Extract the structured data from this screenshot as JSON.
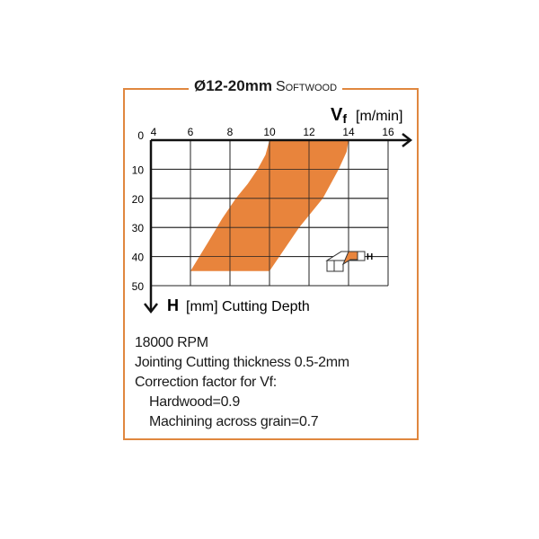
{
  "title": {
    "main": "Ø12-20mm",
    "sub": "Softwood"
  },
  "chart_data": {
    "type": "area",
    "x_axis": {
      "symbol": "V",
      "subscript": "f",
      "unit": "[m/min]",
      "range": [
        4,
        16
      ],
      "ticks": [
        "4",
        "6",
        "8",
        "10",
        "12",
        "14",
        "16"
      ]
    },
    "y_axis": {
      "symbol": "H",
      "label": "[mm] Cutting Depth",
      "range": [
        0,
        50
      ],
      "ticks": [
        "0",
        "10",
        "20",
        "30",
        "40",
        "50"
      ],
      "inverted": true
    },
    "grid": true,
    "region": {
      "left_boundary": [
        [
          10,
          0
        ],
        [
          9.8,
          5
        ],
        [
          9.4,
          10
        ],
        [
          8.9,
          15
        ],
        [
          8.3,
          20
        ],
        [
          7.6,
          27
        ],
        [
          6.9,
          35
        ],
        [
          6,
          45
        ]
      ],
      "right_boundary": [
        [
          14,
          0
        ],
        [
          13.9,
          4
        ],
        [
          13.5,
          10
        ],
        [
          13.1,
          15
        ],
        [
          12.7,
          20
        ],
        [
          11.5,
          30
        ],
        [
          10.8,
          37
        ],
        [
          10,
          45
        ]
      ]
    },
    "region_color": "#e8843c",
    "inset_label": "H"
  },
  "notes": [
    "18000 RPM",
    "Jointing Cutting thickness 0.5-2mm",
    "Correction factor for Vf:",
    "Hardwood=0.9",
    "Machining across grain=0.7"
  ],
  "colors": {
    "frame": "#e0873f",
    "region": "#e8843c"
  }
}
